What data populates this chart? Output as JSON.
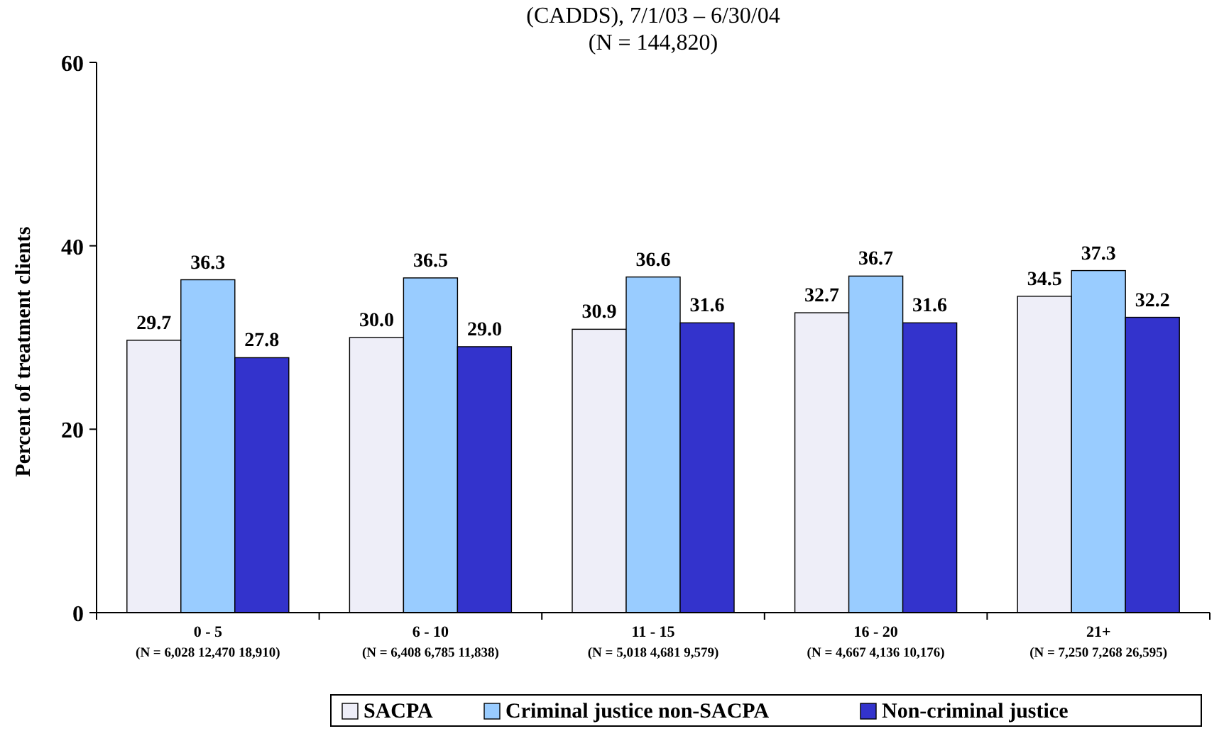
{
  "chart_data": {
    "type": "bar",
    "title": "(CADDS), 7/1/03 – 6/30/04",
    "subtitle": "(N = 144,820)",
    "ylabel": "Percent of treatment clients",
    "categories": [
      "0 - 5\n(N = 6,028 12,470 18,910)",
      "6 - 10\n(N = 6,408 6,785 11,838)",
      "11 - 15\n(N = 5,018 4,681 9,579)",
      "16 - 20\n(N = 4,667 4,136 10,176)",
      "21+\n(N = 7,250 7,268 26,595)"
    ],
    "series": [
      {
        "name": "SACPA",
        "color": "#eeeef8",
        "values": [
          29.7,
          30.0,
          30.9,
          32.7,
          34.5
        ],
        "value_labels": [
          "29.7",
          "30.0",
          "30.9",
          "32.7",
          "34.5"
        ]
      },
      {
        "name": "Criminal justice non-SACPA",
        "color": "#99ccff",
        "values": [
          36.3,
          36.5,
          36.6,
          36.7,
          37.3
        ],
        "value_labels": [
          "36.3",
          "36.5",
          "36.6",
          "36.7",
          "37.3"
        ]
      },
      {
        "name": "Non-criminal justice",
        "color": "#3333cc",
        "values": [
          27.8,
          29.0,
          31.6,
          31.6,
          32.2
        ],
        "value_labels": [
          "27.8",
          "29.0",
          "31.6",
          "31.6",
          "32.2"
        ]
      }
    ],
    "ylim": [
      0,
      60
    ],
    "yticks": [
      0,
      20,
      40,
      60
    ],
    "grid": false,
    "legend": "bottom"
  }
}
